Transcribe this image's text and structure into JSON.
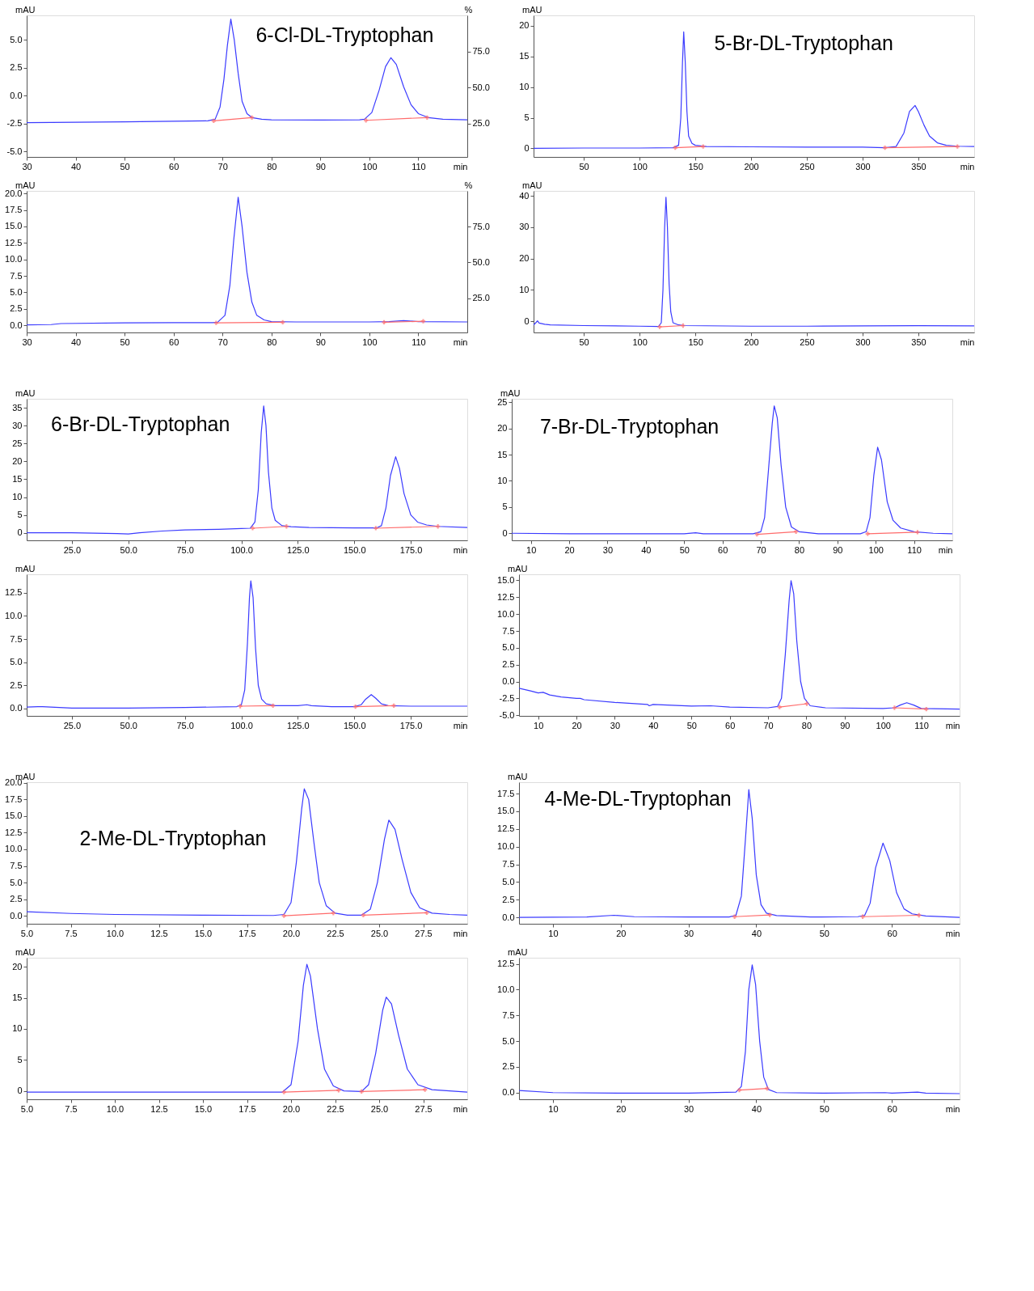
{
  "chart_data": [
    {
      "type": "line",
      "title": "6-Cl-DL-Tryptophan",
      "xlabel": "min",
      "ylabel": "mAU",
      "y2label": "%",
      "xlim": [
        30,
        120
      ],
      "xticks": [
        30,
        40,
        50,
        60,
        70,
        80,
        90,
        100,
        110
      ],
      "ylim": [
        -5.47,
        7.18
      ],
      "yticks": [
        {
          "value": -5,
          "label": "-5.0"
        },
        {
          "value": -2.5,
          "label": "-2.5"
        },
        {
          "value": 0,
          "label": "0.0"
        },
        {
          "value": 2.5,
          "label": "2.5"
        },
        {
          "value": 5,
          "label": "5.0"
        }
      ],
      "y2lim": [
        2,
        100
      ],
      "y2ticks": [
        {
          "value": 25,
          "label": "25.0"
        },
        {
          "value": 50,
          "label": "50.0"
        },
        {
          "value": 75,
          "label": "75.0"
        }
      ],
      "series": [
        {
          "color": "#3b3bff",
          "x": [
            30,
            40,
            50,
            60,
            67,
            68.5,
            69.5,
            70.3,
            71,
            71.7,
            72.4,
            73.2,
            74,
            75,
            76,
            78,
            80,
            90,
            98,
            99,
            100.5,
            102,
            103.3,
            104.4,
            105.5,
            107,
            108.5,
            110,
            112,
            115,
            120
          ],
          "values": [
            -2.4,
            -2.37,
            -2.33,
            -2.28,
            -2.25,
            -2.1,
            -1.0,
            1.5,
            4.5,
            6.85,
            5.0,
            2.0,
            -0.5,
            -1.6,
            -1.95,
            -2.1,
            -2.15,
            -2.17,
            -2.15,
            -2.1,
            -1.5,
            0.5,
            2.6,
            3.4,
            2.8,
            0.8,
            -0.8,
            -1.6,
            -1.95,
            -2.1,
            -2.15
          ]
        },
        {
          "type": "line",
          "color": "#ff6b6b",
          "marker": "cross",
          "x": [
            68.2,
            76.0,
            87,
            99.3,
            111.8
          ],
          "values": [
            -2.25,
            -1.95,
            null,
            -2.2,
            -1.95
          ]
        }
      ]
    },
    {
      "type": "line",
      "title": "5-Br-DL-Tryptophan",
      "xlabel": "min",
      "ylabel": "mAU",
      "xlim": [
        5,
        400
      ],
      "xticks": [
        50,
        100,
        150,
        200,
        250,
        300,
        350
      ],
      "ylim": [
        -1.4,
        21.7
      ],
      "yticks": [
        0,
        5,
        10,
        15,
        20
      ],
      "series": [
        {
          "color": "#3b3bff",
          "x": [
            5,
            50,
            100,
            130,
            135,
            137,
            138.5,
            139.6,
            141,
            142.5,
            144,
            147,
            150,
            160,
            200,
            250,
            300,
            320,
            330,
            337,
            342,
            347,
            350,
            355,
            360,
            367,
            375,
            385,
            400
          ],
          "values": [
            0,
            0.05,
            0.05,
            0.1,
            0.5,
            5,
            14,
            19,
            14,
            6,
            2,
            0.8,
            0.5,
            0.3,
            0.25,
            0.2,
            0.2,
            0.1,
            0.3,
            2.5,
            6,
            7,
            6,
            3.8,
            2,
            0.9,
            0.5,
            0.35,
            0.3
          ]
        },
        {
          "type": "line",
          "color": "#ff6b6b",
          "marker": "cross",
          "x": [
            132,
            157,
            240,
            320,
            385
          ],
          "values": [
            0.1,
            0.3,
            null,
            0.1,
            0.3
          ]
        }
      ]
    },
    {
      "type": "line",
      "xlabel": "min",
      "ylabel": "mAU",
      "y2label": "%",
      "xlim": [
        30,
        120
      ],
      "xticks": [
        30,
        40,
        50,
        60,
        70,
        80,
        90,
        100,
        110
      ],
      "ylim": [
        -1.1,
        20.4
      ],
      "yticks": [
        {
          "value": 0,
          "label": "0.0"
        },
        {
          "value": 2.5,
          "label": "2.5"
        },
        {
          "value": 5,
          "label": "5.0"
        },
        {
          "value": 7.5,
          "label": "7.5"
        },
        {
          "value": 10,
          "label": "10.0"
        },
        {
          "value": 12.5,
          "label": "12.5"
        },
        {
          "value": 15,
          "label": "15.0"
        },
        {
          "value": 17.5,
          "label": "17.5"
        },
        {
          "value": 20,
          "label": "20.0"
        }
      ],
      "y2lim": [
        1,
        100
      ],
      "y2ticks": [
        {
          "value": 25,
          "label": "25.0"
        },
        {
          "value": 50,
          "label": "50.0"
        },
        {
          "value": 75,
          "label": "75.0"
        }
      ],
      "series": [
        {
          "color": "#3b3bff",
          "x": [
            30,
            35,
            37,
            50,
            60,
            68,
            69,
            70.5,
            71.5,
            72.3,
            73.2,
            74,
            75,
            76,
            77,
            78.5,
            80,
            85,
            100,
            104,
            107,
            110,
            120
          ],
          "values": [
            0.05,
            0.1,
            0.25,
            0.35,
            0.4,
            0.4,
            0.45,
            1.5,
            6,
            13,
            19.45,
            15,
            8,
            3.5,
            1.5,
            0.8,
            0.55,
            0.5,
            0.5,
            0.55,
            0.7,
            0.55,
            0.5
          ]
        },
        {
          "type": "line",
          "color": "#ff6b6b",
          "marker": "cross",
          "x": [
            68.7,
            82.3,
            92,
            103,
            111
          ],
          "values": [
            0.35,
            0.45,
            null,
            0.45,
            0.6
          ]
        }
      ]
    },
    {
      "type": "line",
      "xlabel": "min",
      "ylabel": "mAU",
      "xlim": [
        5,
        400
      ],
      "xticks": [
        50,
        100,
        150,
        200,
        250,
        300,
        350
      ],
      "ylim": [
        -3.6,
        41.6
      ],
      "yticks": [
        0,
        10,
        20,
        30,
        40
      ],
      "series": [
        {
          "color": "#3b3bff",
          "x": [
            5,
            7,
            8.5,
            10,
            15,
            20,
            50,
            100,
            117,
            119.5,
            121,
            122.5,
            123.7,
            125,
            126.5,
            128,
            130,
            135,
            140,
            200,
            250,
            300,
            350,
            400
          ],
          "values": [
            -1.2,
            -0.5,
            0.1,
            -0.6,
            -1,
            -1.2,
            -1.4,
            -1.6,
            -1.7,
            -0.5,
            10,
            30,
            39.6,
            30,
            12,
            3,
            -0.5,
            -1.2,
            -1.4,
            -1.6,
            -1.6,
            -1.5,
            -1.45,
            -1.5
          ]
        },
        {
          "type": "line",
          "color": "#ff6b6b",
          "marker": "cross",
          "x": [
            118,
            139
          ],
          "values": [
            -1.8,
            -1.4
          ]
        }
      ]
    },
    {
      "type": "line",
      "title": "6-Br-DL-Tryptophan",
      "xlabel": "min",
      "ylabel": "mAU",
      "xlim": [
        5,
        200
      ],
      "xticks": [
        {
          "value": 25,
          "label": "25.0"
        },
        {
          "value": 50,
          "label": "50.0"
        },
        {
          "value": 75,
          "label": "75.0"
        },
        {
          "value": 100,
          "label": "100.0"
        },
        {
          "value": 125,
          "label": "125.0"
        },
        {
          "value": 150,
          "label": "150.0"
        },
        {
          "value": 175,
          "label": "175.0"
        }
      ],
      "ylim": [
        -2.1,
        37.5
      ],
      "yticks": [
        0,
        5,
        10,
        15,
        20,
        25,
        30,
        35
      ],
      "series": [
        {
          "color": "#3b3bff",
          "x": [
            5,
            25,
            45,
            50,
            55,
            65,
            75,
            90,
            100,
            104,
            106,
            107.5,
            108.8,
            109.9,
            110.9,
            112,
            113.5,
            115,
            118,
            122,
            130,
            150,
            160,
            162,
            164,
            166,
            168.3,
            170,
            172,
            175,
            178,
            182,
            187,
            200
          ],
          "values": [
            0,
            0,
            -0.2,
            -0.3,
            0,
            0.5,
            0.8,
            1,
            1.2,
            1.3,
            3,
            12,
            28,
            35.5,
            30,
            17,
            7,
            3.5,
            2,
            1.7,
            1.5,
            1.4,
            1.4,
            2,
            7,
            16,
            21.3,
            18,
            11,
            5,
            3,
            2.2,
            1.8,
            1.5
          ]
        },
        {
          "type": "line",
          "color": "#ff6b6b",
          "marker": "cross",
          "x": [
            105,
            120,
            140,
            159.5,
            187
          ],
          "values": [
            1.3,
            1.8,
            null,
            1.3,
            1.8
          ]
        }
      ]
    },
    {
      "type": "line",
      "title": "7-Br-DL-Tryptophan",
      "xlabel": "min",
      "ylabel": "mAU",
      "xlim": [
        5,
        120
      ],
      "xticks": [
        10,
        20,
        30,
        40,
        50,
        60,
        70,
        80,
        90,
        100,
        110
      ],
      "ylim": [
        -1.35,
        25.65
      ],
      "yticks": [
        0,
        5,
        10,
        15,
        20,
        25
      ],
      "series": [
        {
          "color": "#3b3bff",
          "x": [
            5,
            20,
            50,
            53,
            55,
            68,
            70,
            71,
            72,
            73,
            73.5,
            74.3,
            75.3,
            76.5,
            78,
            80,
            85,
            96,
            97.5,
            98.5,
            99.5,
            100.5,
            101.5,
            103,
            104.5,
            106.5,
            110,
            115,
            120
          ],
          "values": [
            0,
            -0.1,
            -0.1,
            0.1,
            -0.1,
            -0.1,
            0.3,
            3,
            12,
            21,
            24.3,
            22,
            13,
            5,
            1.2,
            0.3,
            -0.1,
            -0.1,
            0.3,
            3,
            11,
            16.4,
            14,
            6,
            2.5,
            1,
            0.3,
            0,
            -0.1
          ]
        },
        {
          "type": "line",
          "color": "#ff6b6b",
          "marker": "cross",
          "x": [
            69,
            79.2,
            88,
            97.9,
            110.9
          ],
          "values": [
            -0.2,
            0.3,
            null,
            -0.1,
            0.2
          ]
        }
      ]
    },
    {
      "type": "line",
      "xlabel": "min",
      "ylabel": "mAU",
      "xlim": [
        5,
        200
      ],
      "xticks": [
        {
          "value": 25,
          "label": "25.0"
        },
        {
          "value": 50,
          "label": "50.0"
        },
        {
          "value": 75,
          "label": "75.0"
        },
        {
          "value": 100,
          "label": "100.0"
        },
        {
          "value": 125,
          "label": "125.0"
        },
        {
          "value": 150,
          "label": "150.0"
        },
        {
          "value": 175,
          "label": "175.0"
        }
      ],
      "ylim": [
        -0.8,
        14.5
      ],
      "yticks": [
        {
          "value": 0,
          "label": "0.0"
        },
        {
          "value": 2.5,
          "label": "2.5"
        },
        {
          "value": 5,
          "label": "5.0"
        },
        {
          "value": 7.5,
          "label": "7.5"
        },
        {
          "value": 10,
          "label": "10.0"
        },
        {
          "value": 12.5,
          "label": "12.5"
        }
      ],
      "series": [
        {
          "color": "#3b3bff",
          "x": [
            5,
            10,
            12,
            25,
            50,
            75,
            98,
            100,
            101.5,
            102.7,
            103.6,
            104.2,
            105.2,
            106.3,
            107.5,
            109,
            111,
            115,
            125,
            129,
            131,
            140,
            150,
            153,
            155,
            157.5,
            159.5,
            162,
            165,
            175,
            200
          ],
          "values": [
            0.15,
            0.2,
            0.2,
            0.05,
            0.05,
            0.1,
            0.2,
            0.4,
            2,
            7,
            12,
            13.8,
            12,
            6.5,
            2.5,
            1,
            0.5,
            0.3,
            0.3,
            0.4,
            0.3,
            0.2,
            0.2,
            0.4,
            1,
            1.5,
            1.1,
            0.5,
            0.3,
            0.25,
            0.25
          ]
        },
        {
          "type": "line",
          "color": "#ff6b6b",
          "marker": "cross",
          "x": [
            99.5,
            114,
            130,
            150.5,
            167.5
          ],
          "values": [
            0.25,
            0.3,
            null,
            0.2,
            0.3
          ]
        }
      ]
    },
    {
      "type": "line",
      "xlabel": "min",
      "ylabel": "mAU",
      "xlim": [
        5,
        120
      ],
      "xticks": [
        10,
        20,
        30,
        40,
        50,
        60,
        70,
        80,
        90,
        100,
        110
      ],
      "ylim": [
        -5.1,
        15.9
      ],
      "yticks": [
        {
          "value": -5,
          "label": "-5.0"
        },
        {
          "value": -2.5,
          "label": "-2.5"
        },
        {
          "value": 0,
          "label": "0.0"
        },
        {
          "value": 2.5,
          "label": "2.5"
        },
        {
          "value": 5,
          "label": "5.0"
        },
        {
          "value": 7.5,
          "label": "7.5"
        },
        {
          "value": 10,
          "label": "10.0"
        },
        {
          "value": 12.5,
          "label": "12.5"
        },
        {
          "value": 15,
          "label": "15.0"
        }
      ],
      "series": [
        {
          "color": "#3b3bff",
          "x": [
            5,
            8,
            10,
            11.3,
            13,
            16,
            20,
            21,
            22,
            30,
            38.5,
            39,
            40,
            50,
            55,
            60,
            70,
            72.5,
            73.5,
            74.5,
            75.5,
            76,
            76.7,
            77.5,
            78.5,
            79.5,
            81,
            85,
            100,
            103,
            104.5,
            106.2,
            108,
            110,
            120
          ],
          "values": [
            -1.0,
            -1.4,
            -1.7,
            -1.6,
            -2.0,
            -2.3,
            -2.5,
            -2.5,
            -2.7,
            -3.1,
            -3.4,
            -3.6,
            -3.4,
            -3.65,
            -3.6,
            -3.8,
            -3.9,
            -3.7,
            -2.5,
            4,
            12,
            14.95,
            13,
            6,
            0,
            -2.5,
            -3.6,
            -3.9,
            -4.0,
            -3.9,
            -3.5,
            -3.15,
            -3.5,
            -4,
            -4.1
          ]
        },
        {
          "type": "line",
          "color": "#ff6b6b",
          "marker": "cross",
          "x": [
            73,
            80.1,
            90,
            103,
            111.3
          ],
          "values": [
            -3.8,
            -3.3,
            null,
            -3.9,
            -4.1
          ]
        }
      ]
    },
    {
      "type": "line",
      "title": "2-Me-DL-Tryptophan",
      "xlabel": "min",
      "ylabel": "mAU",
      "xlim": [
        5,
        30
      ],
      "xticks": [
        {
          "value": 5,
          "label": "5.0"
        },
        {
          "value": 7.5,
          "label": "7.5"
        },
        {
          "value": 10,
          "label": "10.0"
        },
        {
          "value": 12.5,
          "label": "12.5"
        },
        {
          "value": 15,
          "label": "15.0"
        },
        {
          "value": 17.5,
          "label": "17.5"
        },
        {
          "value": 20,
          "label": "20.0"
        },
        {
          "value": 22.5,
          "label": "22.5"
        },
        {
          "value": 25,
          "label": "25.0"
        },
        {
          "value": 27.5,
          "label": "27.5"
        }
      ],
      "ylim": [
        -1.2,
        20.1
      ],
      "yticks": [
        {
          "value": 0,
          "label": "0.0"
        },
        {
          "value": 2.5,
          "label": "2.5"
        },
        {
          "value": 5,
          "label": "5.0"
        },
        {
          "value": 7.5,
          "label": "7.5"
        },
        {
          "value": 10,
          "label": "10.0"
        },
        {
          "value": 12.5,
          "label": "12.5"
        },
        {
          "value": 15,
          "label": "15.0"
        },
        {
          "value": 17.5,
          "label": "17.5"
        },
        {
          "value": 20,
          "label": "20.0"
        }
      ],
      "series": [
        {
          "color": "#3b3bff",
          "x": [
            5,
            7.5,
            10,
            15,
            19,
            19.6,
            20,
            20.3,
            20.6,
            20.75,
            21,
            21.3,
            21.6,
            22,
            22.5,
            23.2,
            24,
            24.5,
            24.9,
            25.3,
            25.55,
            25.9,
            26.3,
            26.8,
            27.3,
            28,
            29,
            30
          ],
          "values": [
            0.6,
            0.35,
            0.2,
            0.1,
            0.05,
            0.2,
            2,
            8,
            16,
            19.1,
            17.5,
            11,
            5,
            1.5,
            0.4,
            0.1,
            0.1,
            1,
            5,
            11.5,
            14.4,
            13,
            8.5,
            3.5,
            1.2,
            0.4,
            0.2,
            0.1
          ]
        },
        {
          "type": "line",
          "color": "#ff6b6b",
          "marker": "cross",
          "x": [
            19.6,
            22.4,
            23.2,
            24.1,
            27.7
          ],
          "values": [
            0.0,
            0.4,
            null,
            0.1,
            0.45
          ]
        }
      ]
    },
    {
      "type": "line",
      "title": "4-Me-DL-Tryptophan",
      "xlabel": "min",
      "ylabel": "mAU",
      "xlim": [
        5,
        70
      ],
      "xticks": [
        10,
        20,
        30,
        40,
        50,
        60
      ],
      "ylim": [
        -0.9,
        19.1
      ],
      "yticks": [
        {
          "value": 0,
          "label": "0.0"
        },
        {
          "value": 2.5,
          "label": "2.5"
        },
        {
          "value": 5,
          "label": "5.0"
        },
        {
          "value": 7.5,
          "label": "7.5"
        },
        {
          "value": 10,
          "label": "10.0"
        },
        {
          "value": 12.5,
          "label": "12.5"
        },
        {
          "value": 15,
          "label": "15.0"
        },
        {
          "value": 17.5,
          "label": "17.5"
        }
      ],
      "series": [
        {
          "color": "#3b3bff",
          "x": [
            5,
            15,
            19,
            22,
            30,
            36,
            37,
            37.8,
            38.4,
            38.9,
            39.4,
            40,
            40.7,
            41.5,
            43,
            48,
            55,
            56,
            56.8,
            57.6,
            58.7,
            59.7,
            60.7,
            61.8,
            63,
            65,
            70
          ],
          "values": [
            0,
            0.05,
            0.3,
            0.1,
            0.05,
            0.05,
            0.3,
            3,
            11,
            18.05,
            14,
            6,
            1.8,
            0.6,
            0.25,
            0.05,
            0.1,
            0.3,
            2,
            7,
            10.5,
            8,
            3.5,
            1.2,
            0.5,
            0.2,
            0
          ]
        },
        {
          "type": "line",
          "color": "#ff6b6b",
          "marker": "cross",
          "x": [
            36.8,
            42,
            49,
            55.7,
            64
          ],
          "values": [
            0.1,
            0.35,
            null,
            0.1,
            0.3
          ]
        }
      ]
    },
    {
      "type": "line",
      "xlabel": "min",
      "ylabel": "mAU",
      "xlim": [
        5,
        30
      ],
      "xticks": [
        {
          "value": 5,
          "label": "5.0"
        },
        {
          "value": 7.5,
          "label": "7.5"
        },
        {
          "value": 10,
          "label": "10.0"
        },
        {
          "value": 12.5,
          "label": "12.5"
        },
        {
          "value": 15,
          "label": "15.0"
        },
        {
          "value": 17.5,
          "label": "17.5"
        },
        {
          "value": 20,
          "label": "20.0"
        },
        {
          "value": 22.5,
          "label": "22.5"
        },
        {
          "value": 25,
          "label": "25.0"
        },
        {
          "value": 27.5,
          "label": "27.5"
        }
      ],
      "ylim": [
        -1.35,
        21.45
      ],
      "yticks": [
        0,
        5,
        10,
        15,
        20
      ],
      "series": [
        {
          "color": "#3b3bff",
          "x": [
            5,
            15,
            19.5,
            20,
            20.4,
            20.7,
            20.9,
            21.1,
            21.5,
            21.9,
            22.4,
            23,
            24,
            24.4,
            24.8,
            25.2,
            25.4,
            25.7,
            26.1,
            26.6,
            27.2,
            28,
            30
          ],
          "values": [
            -0.2,
            -0.2,
            -0.2,
            1,
            8,
            17,
            20.4,
            18.5,
            10,
            3.5,
            0.8,
            0,
            -0.1,
            1,
            6,
            13,
            15.1,
            14,
            9,
            3.5,
            1,
            0.2,
            -0.2
          ]
        },
        {
          "type": "line",
          "color": "#ff6b6b",
          "marker": "cross",
          "x": [
            19.6,
            22.7,
            23.3,
            24,
            27.6
          ],
          "values": [
            -0.2,
            0.1,
            null,
            -0.1,
            0.2
          ]
        }
      ]
    },
    {
      "type": "line",
      "xlabel": "min",
      "ylabel": "mAU",
      "xlim": [
        5,
        70
      ],
      "xticks": [
        10,
        20,
        30,
        40,
        50,
        60
      ],
      "ylim": [
        -0.65,
        13.1
      ],
      "yticks": [
        {
          "value": 0,
          "label": "0.0"
        },
        {
          "value": 2.5,
          "label": "2.5"
        },
        {
          "value": 5,
          "label": "5.0"
        },
        {
          "value": 7.5,
          "label": "7.5"
        },
        {
          "value": 10,
          "label": "10.0"
        },
        {
          "value": 12.5,
          "label": "12.5"
        }
      ],
      "series": [
        {
          "color": "#3b3bff",
          "x": [
            5,
            10,
            20,
            30,
            37,
            37.8,
            38.4,
            38.9,
            39.4,
            39.9,
            40.5,
            41.1,
            41.8,
            43,
            50,
            59,
            60,
            63.8,
            65,
            70
          ],
          "values": [
            0.2,
            0,
            -0.05,
            -0.05,
            0.05,
            0.6,
            4,
            10,
            12.4,
            10.5,
            5,
            1.5,
            0.3,
            0,
            -0.05,
            0,
            -0.05,
            0.05,
            -0.05,
            -0.1
          ]
        },
        {
          "type": "line",
          "color": "#ff6b6b",
          "marker": "cross",
          "x": [
            37.5,
            41.6
          ],
          "values": [
            0.25,
            0.4
          ]
        }
      ]
    }
  ]
}
